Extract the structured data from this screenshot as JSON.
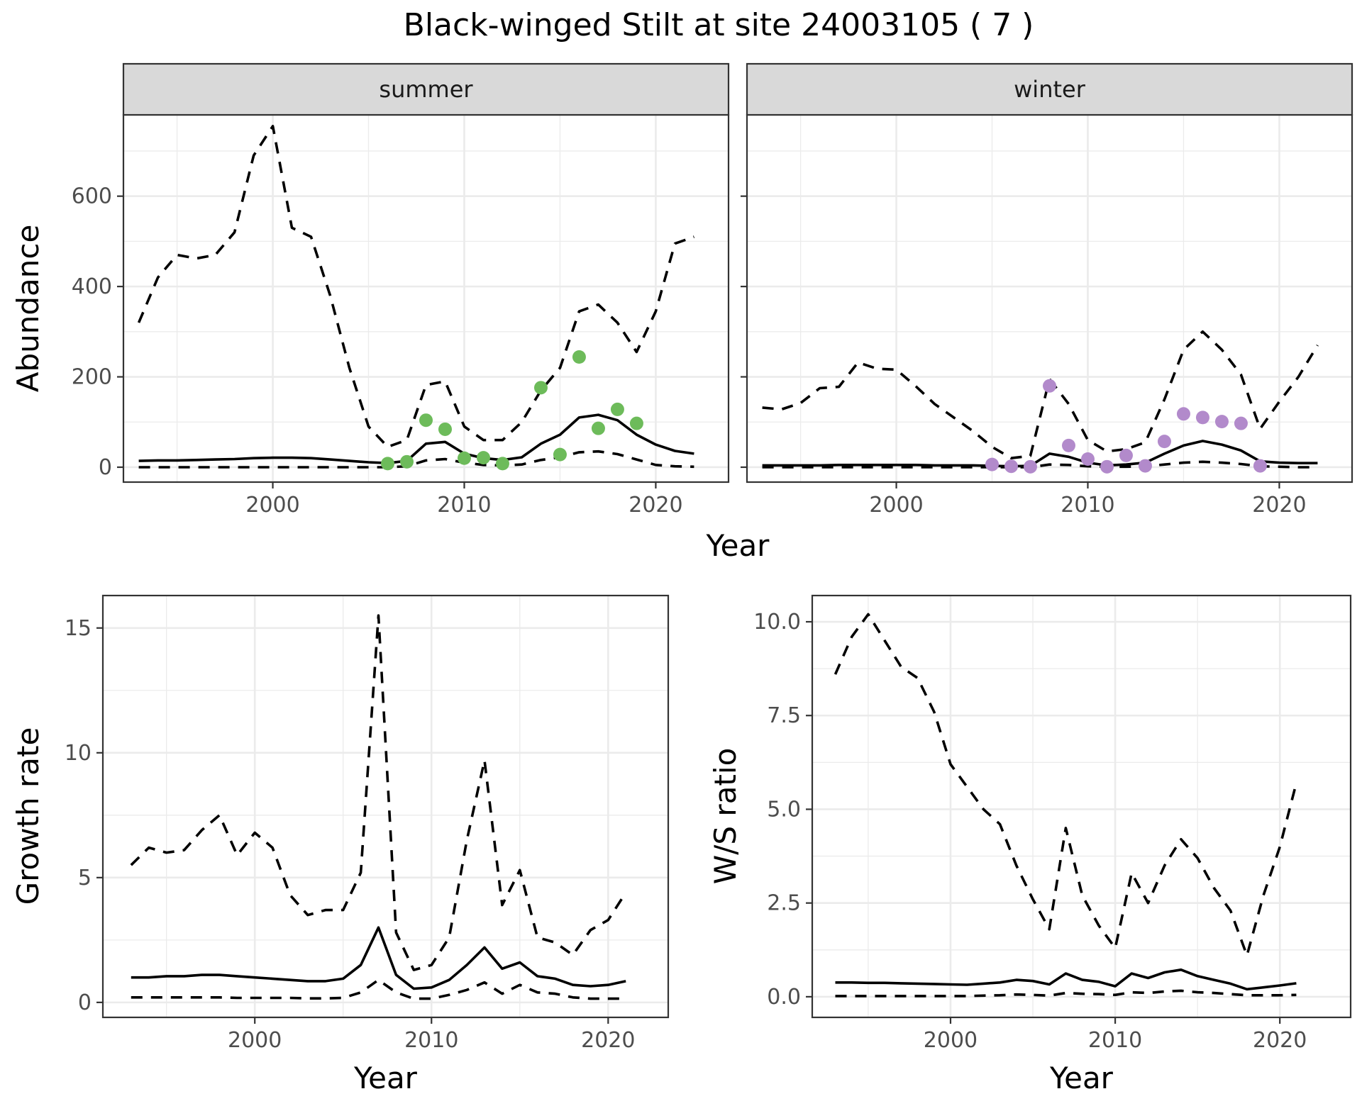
{
  "title": "Black-winged Stilt at site 24003105 ( 7 )",
  "colors": {
    "summer_points": "#6dbb5a",
    "winter_points": "#b28acb"
  },
  "chart_data": [
    {
      "id": "summer",
      "type": "line",
      "strip": "summer",
      "ylabel": "Abundance",
      "xlabel": "",
      "xlim": [
        1992.2,
        2023.8
      ],
      "ylim": [
        -33,
        780
      ],
      "xticks": [
        2000,
        2010,
        2020
      ],
      "xtick_labels": [
        "2000",
        "2010",
        "2020"
      ],
      "yticks": [
        0,
        200,
        400,
        600
      ],
      "ytick_labels": [
        "0",
        "200",
        "400",
        "600"
      ],
      "grid": true,
      "points_color": "#6dbb5a",
      "series": [
        {
          "style": "upper",
          "x": [
            1993,
            1994,
            1995,
            1996,
            1997,
            1998,
            1999,
            2000,
            2001,
            2002,
            2003,
            2004,
            2005,
            2006,
            2007,
            2008,
            2009,
            2010,
            2011,
            2012,
            2013,
            2014,
            2015,
            2016,
            2017,
            2018,
            2019,
            2020,
            2021,
            2022
          ],
          "y": [
            320,
            420,
            470,
            462,
            470,
            520,
            690,
            755,
            530,
            510,
            380,
            220,
            90,
            45,
            60,
            182,
            190,
            90,
            60,
            60,
            100,
            170,
            220,
            345,
            360,
            320,
            255,
            345,
            495,
            510
          ]
        },
        {
          "style": "mean",
          "x": [
            1993,
            1994,
            1995,
            1996,
            1997,
            1998,
            1999,
            2000,
            2001,
            2002,
            2003,
            2004,
            2005,
            2006,
            2007,
            2008,
            2009,
            2010,
            2011,
            2012,
            2013,
            2014,
            2015,
            2016,
            2017,
            2018,
            2019,
            2020,
            2021,
            2022
          ],
          "y": [
            14,
            15,
            15,
            16,
            17,
            18,
            20,
            21,
            21,
            20,
            17,
            14,
            11,
            9,
            14,
            52,
            56,
            30,
            20,
            16,
            22,
            52,
            72,
            110,
            116,
            104,
            72,
            50,
            36,
            30
          ]
        },
        {
          "style": "lower",
          "x": [
            1993,
            1994,
            1995,
            1996,
            1997,
            1998,
            1999,
            2000,
            2001,
            2002,
            2003,
            2004,
            2005,
            2006,
            2007,
            2008,
            2009,
            2010,
            2011,
            2012,
            2013,
            2014,
            2015,
            2016,
            2017,
            2018,
            2019,
            2020,
            2021,
            2022
          ],
          "y": [
            0,
            0,
            0,
            0,
            0,
            0,
            0,
            0,
            0,
            0,
            0,
            0,
            0,
            0,
            2,
            15,
            18,
            10,
            5,
            4,
            6,
            16,
            22,
            33,
            35,
            29,
            17,
            5,
            2,
            1
          ]
        }
      ],
      "points": {
        "x": [
          2006,
          2007,
          2008,
          2009,
          2010,
          2011,
          2012,
          2014,
          2015,
          2016,
          2017,
          2018,
          2019
        ],
        "y": [
          8,
          12,
          104,
          84,
          20,
          21,
          8,
          176,
          28,
          244,
          86,
          128,
          97
        ]
      }
    },
    {
      "id": "winter",
      "type": "line",
      "strip": "winter",
      "ylabel": "",
      "xlabel": "",
      "xlim": [
        1992.2,
        2023.8
      ],
      "ylim": [
        -33,
        780
      ],
      "xticks": [
        2000,
        2010,
        2020
      ],
      "xtick_labels": [
        "2000",
        "2010",
        "2020"
      ],
      "yticks": [
        0,
        200,
        400,
        600
      ],
      "ytick_labels": [],
      "grid": true,
      "points_color": "#b28acb",
      "series": [
        {
          "style": "upper",
          "x": [
            1993,
            1994,
            1995,
            1996,
            1997,
            1998,
            1999,
            2000,
            2001,
            2002,
            2003,
            2004,
            2005,
            2006,
            2007,
            2008,
            2009,
            2010,
            2011,
            2012,
            2013,
            2014,
            2015,
            2016,
            2017,
            2018,
            2019,
            2020,
            2021,
            2022
          ],
          "y": [
            132,
            128,
            142,
            175,
            178,
            232,
            218,
            216,
            180,
            140,
            110,
            80,
            45,
            20,
            25,
            195,
            140,
            60,
            35,
            40,
            55,
            150,
            260,
            300,
            260,
            205,
            85,
            145,
            200,
            270
          ]
        },
        {
          "style": "mean",
          "x": [
            1993,
            1994,
            1995,
            1996,
            1997,
            1998,
            1999,
            2000,
            2001,
            2002,
            2003,
            2004,
            2005,
            2006,
            2007,
            2008,
            2009,
            2010,
            2011,
            2012,
            2013,
            2014,
            2015,
            2016,
            2017,
            2018,
            2019,
            2020,
            2021,
            2022
          ],
          "y": [
            4,
            4,
            4,
            4,
            5,
            5,
            5,
            5,
            5,
            4,
            4,
            4,
            3,
            2,
            3,
            30,
            23,
            10,
            4,
            6,
            10,
            30,
            48,
            58,
            50,
            37,
            13,
            10,
            9,
            9
          ]
        },
        {
          "style": "lower",
          "x": [
            1993,
            1994,
            1995,
            1996,
            1997,
            1998,
            1999,
            2000,
            2001,
            2002,
            2003,
            2004,
            2005,
            2006,
            2007,
            2008,
            2009,
            2010,
            2011,
            2012,
            2013,
            2014,
            2015,
            2016,
            2017,
            2018,
            2019,
            2020,
            2021,
            2022
          ],
          "y": [
            0,
            0,
            0,
            0,
            0,
            0,
            0,
            0,
            0,
            0,
            0,
            0,
            0,
            0,
            0,
            6,
            5,
            2,
            1,
            1,
            2,
            6,
            10,
            12,
            10,
            7,
            2,
            1,
            0,
            0
          ]
        }
      ],
      "points": {
        "x": [
          2005,
          2006,
          2007,
          2008,
          2009,
          2010,
          2011,
          2012,
          2013,
          2014,
          2015,
          2016,
          2017,
          2018,
          2019
        ],
        "y": [
          6,
          2,
          1,
          180,
          48,
          18,
          1,
          26,
          3,
          57,
          118,
          110,
          101,
          97,
          3
        ]
      }
    },
    {
      "id": "growth",
      "type": "line",
      "strip": "",
      "ylabel": "Growth rate",
      "xlabel": "Year",
      "xlim": [
        1991.4,
        2023.4
      ],
      "ylim": [
        -0.6,
        16.3
      ],
      "xticks": [
        2000,
        2010,
        2020
      ],
      "xtick_labels": [
        "2000",
        "2010",
        "2020"
      ],
      "yticks": [
        0,
        5,
        10,
        15
      ],
      "ytick_labels": [
        "0",
        "5",
        "10",
        "15"
      ],
      "grid": true,
      "series": [
        {
          "style": "upper",
          "x": [
            1993,
            1994,
            1995,
            1996,
            1997,
            1998,
            1999,
            2000,
            2001,
            2002,
            2003,
            2004,
            2005,
            2006,
            2007,
            2008,
            2009,
            2010,
            2011,
            2012,
            2013,
            2014,
            2015,
            2016,
            2017,
            2018,
            2019,
            2020,
            2021
          ],
          "y": [
            5.5,
            6.2,
            6.0,
            6.1,
            6.9,
            7.5,
            5.9,
            6.8,
            6.2,
            4.3,
            3.5,
            3.7,
            3.7,
            5.2,
            15.5,
            2.8,
            1.3,
            1.5,
            2.6,
            6.5,
            9.7,
            3.9,
            5.3,
            2.6,
            2.4,
            1.9,
            2.9,
            3.3,
            4.4
          ]
        },
        {
          "style": "mean",
          "x": [
            1993,
            1994,
            1995,
            1996,
            1997,
            1998,
            1999,
            2000,
            2001,
            2002,
            2003,
            2004,
            2005,
            2006,
            2007,
            2008,
            2009,
            2010,
            2011,
            2012,
            2013,
            2014,
            2015,
            2016,
            2017,
            2018,
            2019,
            2020,
            2021
          ],
          "y": [
            1.0,
            1.0,
            1.05,
            1.05,
            1.1,
            1.1,
            1.05,
            1.0,
            0.95,
            0.9,
            0.85,
            0.85,
            0.95,
            1.5,
            3.0,
            1.1,
            0.55,
            0.6,
            0.9,
            1.5,
            2.2,
            1.35,
            1.6,
            1.05,
            0.95,
            0.7,
            0.65,
            0.7,
            0.85
          ]
        },
        {
          "style": "lower",
          "x": [
            1993,
            1994,
            1995,
            1996,
            1997,
            1998,
            1999,
            2000,
            2001,
            2002,
            2003,
            2004,
            2005,
            2006,
            2007,
            2008,
            2009,
            2010,
            2011,
            2012,
            2013,
            2014,
            2015,
            2016,
            2017,
            2018,
            2019,
            2020,
            2021
          ],
          "y": [
            0.2,
            0.2,
            0.2,
            0.2,
            0.2,
            0.2,
            0.18,
            0.18,
            0.18,
            0.18,
            0.16,
            0.16,
            0.18,
            0.4,
            0.9,
            0.4,
            0.15,
            0.15,
            0.3,
            0.5,
            0.8,
            0.35,
            0.7,
            0.4,
            0.35,
            0.2,
            0.15,
            0.15,
            0.15
          ]
        }
      ]
    },
    {
      "id": "ratio",
      "type": "line",
      "strip": "",
      "ylabel": "W/S ratio",
      "xlabel": "Year",
      "xlim": [
        1991.6,
        2024.3
      ],
      "ylim": [
        -0.55,
        10.7
      ],
      "xticks": [
        2000,
        2010,
        2020
      ],
      "xtick_labels": [
        "2000",
        "2010",
        "2020"
      ],
      "yticks": [
        0,
        2.5,
        5,
        7.5,
        10
      ],
      "ytick_labels": [
        "0.0",
        "2.5",
        "5.0",
        "7.5",
        "10.0"
      ],
      "grid": true,
      "series": [
        {
          "style": "upper",
          "x": [
            1993,
            1994,
            1995,
            1996,
            1997,
            1998,
            1999,
            2000,
            2001,
            2002,
            2003,
            2004,
            2005,
            2006,
            2007,
            2008,
            2009,
            2010,
            2011,
            2012,
            2013,
            2014,
            2015,
            2016,
            2017,
            2018,
            2019,
            2020,
            2021
          ],
          "y": [
            8.6,
            9.6,
            10.2,
            9.5,
            8.8,
            8.5,
            7.6,
            6.2,
            5.6,
            5.0,
            4.6,
            3.5,
            2.6,
            1.8,
            4.5,
            2.7,
            1.9,
            1.3,
            3.3,
            2.5,
            3.5,
            4.2,
            3.7,
            2.9,
            2.3,
            1.1,
            2.7,
            4.0,
            5.7
          ]
        },
        {
          "style": "mean",
          "x": [
            1993,
            1994,
            1995,
            1996,
            1997,
            1998,
            1999,
            2000,
            2001,
            2002,
            2003,
            2004,
            2005,
            2006,
            2007,
            2008,
            2009,
            2010,
            2011,
            2012,
            2013,
            2014,
            2015,
            2016,
            2017,
            2018,
            2019,
            2020,
            2021
          ],
          "y": [
            0.38,
            0.38,
            0.37,
            0.37,
            0.36,
            0.35,
            0.34,
            0.33,
            0.32,
            0.35,
            0.38,
            0.45,
            0.42,
            0.33,
            0.62,
            0.45,
            0.4,
            0.28,
            0.62,
            0.5,
            0.65,
            0.72,
            0.55,
            0.45,
            0.35,
            0.2,
            0.25,
            0.3,
            0.36
          ]
        },
        {
          "style": "lower",
          "x": [
            1993,
            1994,
            1995,
            1996,
            1997,
            1998,
            1999,
            2000,
            2001,
            2002,
            2003,
            2004,
            2005,
            2006,
            2007,
            2008,
            2009,
            2010,
            2011,
            2012,
            2013,
            2014,
            2015,
            2016,
            2017,
            2018,
            2019,
            2020,
            2021
          ],
          "y": [
            0.02,
            0.02,
            0.02,
            0.02,
            0.02,
            0.02,
            0.02,
            0.02,
            0.02,
            0.03,
            0.04,
            0.06,
            0.05,
            0.03,
            0.1,
            0.08,
            0.07,
            0.05,
            0.12,
            0.1,
            0.14,
            0.16,
            0.12,
            0.1,
            0.07,
            0.04,
            0.04,
            0.04,
            0.05
          ]
        }
      ]
    }
  ],
  "shared_xlabel": "Year"
}
